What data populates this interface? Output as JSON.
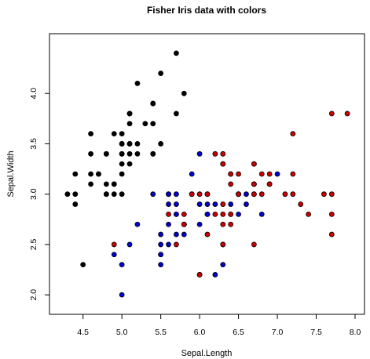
{
  "chart_data": {
    "type": "scatter",
    "title": "Fisher Iris data with colors",
    "xlabel": "Sepal.Length",
    "ylabel": "Sepal.Width",
    "xlim": [
      4.2,
      8.0
    ],
    "ylim": [
      1.9,
      4.5
    ],
    "x_ticks": [
      "4.5",
      "5.0",
      "5.5",
      "6.0",
      "6.5",
      "7.0",
      "7.5",
      "8.0"
    ],
    "y_ticks": [
      "2.0",
      "2.5",
      "3.0",
      "3.5",
      "4.0"
    ],
    "grid": false,
    "series": [
      {
        "color": "#000000",
        "x": [
          5.1,
          4.9,
          4.7,
          4.6,
          5.0,
          5.4,
          4.6,
          5.0,
          4.4,
          4.9,
          5.4,
          4.8,
          4.8,
          4.3,
          5.8,
          5.7,
          5.4,
          5.1,
          5.7,
          5.1,
          5.4,
          5.1,
          4.6,
          5.1,
          4.8,
          5.0,
          5.0,
          5.2,
          5.2,
          4.7,
          4.8,
          5.4,
          5.2,
          5.5,
          4.9,
          5.0,
          5.5,
          4.9,
          4.4,
          5.1,
          5.0,
          4.5,
          4.4,
          5.0,
          5.1,
          4.8,
          5.1,
          4.6,
          5.3,
          5.0
        ],
        "y": [
          3.5,
          3.0,
          3.2,
          3.1,
          3.6,
          3.9,
          3.4,
          3.4,
          2.9,
          3.1,
          3.7,
          3.4,
          3.0,
          3.0,
          4.0,
          4.4,
          3.9,
          3.5,
          3.8,
          3.8,
          3.4,
          3.7,
          3.6,
          3.3,
          3.4,
          3.0,
          3.4,
          3.5,
          3.4,
          3.2,
          3.1,
          3.4,
          4.1,
          4.2,
          3.1,
          3.2,
          3.5,
          3.6,
          3.0,
          3.4,
          3.5,
          2.3,
          3.2,
          3.5,
          3.8,
          3.0,
          3.8,
          3.2,
          3.7,
          3.3
        ]
      },
      {
        "color": "#0000cd",
        "x": [
          7.0,
          6.4,
          6.9,
          5.5,
          6.5,
          5.7,
          6.3,
          4.9,
          6.6,
          5.2,
          5.0,
          5.9,
          6.0,
          6.1,
          5.6,
          6.7,
          5.6,
          5.8,
          6.2,
          5.6,
          5.9,
          6.1,
          6.3,
          6.1,
          6.4,
          6.6,
          6.8,
          6.7,
          6.0,
          5.7,
          5.5,
          5.5,
          5.8,
          6.0,
          5.4,
          6.0,
          6.7,
          6.3,
          5.6,
          5.5,
          5.5,
          6.1,
          5.8,
          5.0,
          5.6,
          5.7,
          5.7,
          6.2,
          5.1,
          5.7
        ],
        "y": [
          3.2,
          3.2,
          3.1,
          2.3,
          2.8,
          2.8,
          3.3,
          2.4,
          2.9,
          2.7,
          2.0,
          3.0,
          2.2,
          2.9,
          2.9,
          3.1,
          3.0,
          2.7,
          2.2,
          2.5,
          3.2,
          2.8,
          2.5,
          2.8,
          2.9,
          3.0,
          2.8,
          3.0,
          2.9,
          2.6,
          2.4,
          2.4,
          2.7,
          2.7,
          3.0,
          3.4,
          3.1,
          2.3,
          3.0,
          2.5,
          2.6,
          3.0,
          2.6,
          2.3,
          2.7,
          3.0,
          2.9,
          2.9,
          2.5,
          2.8
        ]
      },
      {
        "color": "#cd0000",
        "x": [
          6.3,
          5.8,
          7.1,
          6.3,
          6.5,
          7.6,
          4.9,
          7.3,
          6.7,
          7.2,
          6.5,
          6.4,
          6.8,
          5.7,
          5.8,
          6.4,
          6.5,
          7.7,
          7.7,
          6.0,
          6.9,
          5.6,
          7.7,
          6.3,
          6.7,
          7.2,
          6.2,
          6.1,
          6.4,
          7.2,
          7.4,
          7.9,
          6.4,
          6.3,
          6.1,
          7.7,
          6.3,
          6.4,
          6.0,
          6.9,
          6.7,
          6.9,
          5.8,
          6.8,
          6.7,
          6.7,
          6.3,
          6.5,
          6.2,
          5.9
        ],
        "y": [
          3.3,
          2.7,
          3.0,
          2.9,
          3.0,
          3.0,
          2.5,
          2.9,
          2.5,
          3.6,
          3.2,
          2.7,
          3.0,
          2.5,
          2.8,
          3.2,
          3.0,
          3.8,
          2.6,
          2.2,
          3.2,
          2.8,
          2.8,
          2.7,
          3.3,
          3.2,
          2.8,
          3.0,
          2.8,
          3.0,
          2.8,
          3.8,
          2.8,
          2.8,
          2.6,
          3.0,
          3.4,
          3.1,
          3.0,
          3.1,
          3.1,
          3.1,
          2.7,
          3.2,
          3.3,
          3.0,
          2.5,
          3.0,
          3.4,
          3.0
        ]
      }
    ]
  }
}
